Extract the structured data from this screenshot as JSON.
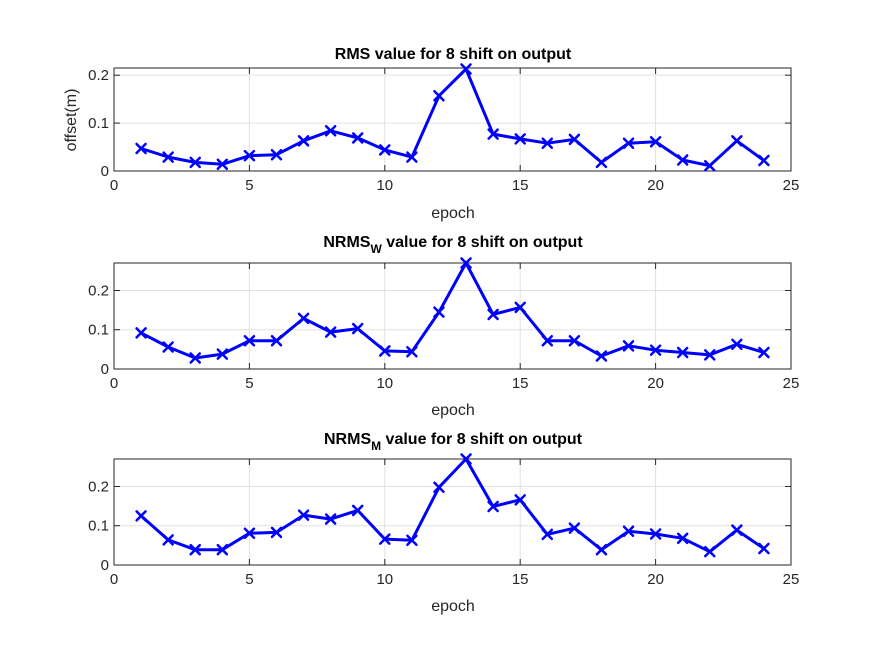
{
  "colors": {
    "series": "#0000ff",
    "axis": "#262626",
    "grid": "#e0e0e0"
  },
  "chart_data": [
    {
      "type": "line",
      "title": {
        "main": "RMS value for 8 shift on output",
        "sub": "",
        "rest": ""
      },
      "xlabel": "epoch",
      "ylabel": "offset(m)",
      "xlim": [
        0,
        25
      ],
      "ylim": [
        0,
        0.215
      ],
      "xticks": [
        0,
        5,
        10,
        15,
        20,
        25
      ],
      "yticks": [
        0,
        0.1,
        0.2
      ],
      "xtick_labels": [
        "0",
        "5",
        "10",
        "15",
        "20",
        "25"
      ],
      "ytick_labels": [
        "0",
        "0.1",
        "0.2"
      ],
      "grid": true,
      "marker": "x",
      "x": [
        1,
        2,
        3,
        4,
        5,
        6,
        7,
        8,
        9,
        10,
        11,
        12,
        13,
        14,
        15,
        16,
        17,
        18,
        19,
        20,
        21,
        22,
        23,
        24
      ],
      "series": [
        {
          "values": [
            0.047,
            0.029,
            0.018,
            0.014,
            0.032,
            0.034,
            0.063,
            0.084,
            0.069,
            0.044,
            0.029,
            0.157,
            0.213,
            0.077,
            0.067,
            0.058,
            0.066,
            0.018,
            0.058,
            0.061,
            0.023,
            0.011,
            0.063,
            0.022
          ]
        }
      ]
    },
    {
      "type": "line",
      "title": {
        "main": "NRMS",
        "sub": "W",
        "rest": " value for 8 shift on output"
      },
      "xlabel": "epoch",
      "ylabel": "",
      "xlim": [
        0,
        25
      ],
      "ylim": [
        0,
        0.27
      ],
      "xticks": [
        0,
        5,
        10,
        15,
        20,
        25
      ],
      "yticks": [
        0,
        0.1,
        0.2
      ],
      "xtick_labels": [
        "0",
        "5",
        "10",
        "15",
        "20",
        "25"
      ],
      "ytick_labels": [
        "0",
        "0.1",
        "0.2"
      ],
      "grid": true,
      "marker": "x",
      "x": [
        1,
        2,
        3,
        4,
        5,
        6,
        7,
        8,
        9,
        10,
        11,
        12,
        13,
        14,
        15,
        16,
        17,
        18,
        19,
        20,
        21,
        22,
        23,
        24
      ],
      "series": [
        {
          "values": [
            0.092,
            0.056,
            0.028,
            0.038,
            0.072,
            0.072,
            0.129,
            0.094,
            0.103,
            0.046,
            0.044,
            0.145,
            0.27,
            0.139,
            0.157,
            0.072,
            0.072,
            0.033,
            0.059,
            0.048,
            0.042,
            0.036,
            0.063,
            0.042
          ]
        }
      ]
    },
    {
      "type": "line",
      "title": {
        "main": "NRMS",
        "sub": "M",
        "rest": " value for 8 shift on output"
      },
      "xlabel": "epoch",
      "ylabel": "",
      "xlim": [
        0,
        25
      ],
      "ylim": [
        0,
        0.27
      ],
      "xticks": [
        0,
        5,
        10,
        15,
        20,
        25
      ],
      "yticks": [
        0,
        0.1,
        0.2
      ],
      "xtick_labels": [
        "0",
        "5",
        "10",
        "15",
        "20",
        "25"
      ],
      "ytick_labels": [
        "0",
        "0.1",
        "0.2"
      ],
      "grid": true,
      "marker": "x",
      "x": [
        1,
        2,
        3,
        4,
        5,
        6,
        7,
        8,
        9,
        10,
        11,
        12,
        13,
        14,
        15,
        16,
        17,
        18,
        19,
        20,
        21,
        22,
        23,
        24
      ],
      "series": [
        {
          "values": [
            0.125,
            0.064,
            0.039,
            0.039,
            0.081,
            0.083,
            0.127,
            0.117,
            0.139,
            0.066,
            0.063,
            0.198,
            0.27,
            0.149,
            0.166,
            0.078,
            0.094,
            0.039,
            0.086,
            0.079,
            0.068,
            0.034,
            0.089,
            0.042
          ]
        }
      ]
    }
  ]
}
